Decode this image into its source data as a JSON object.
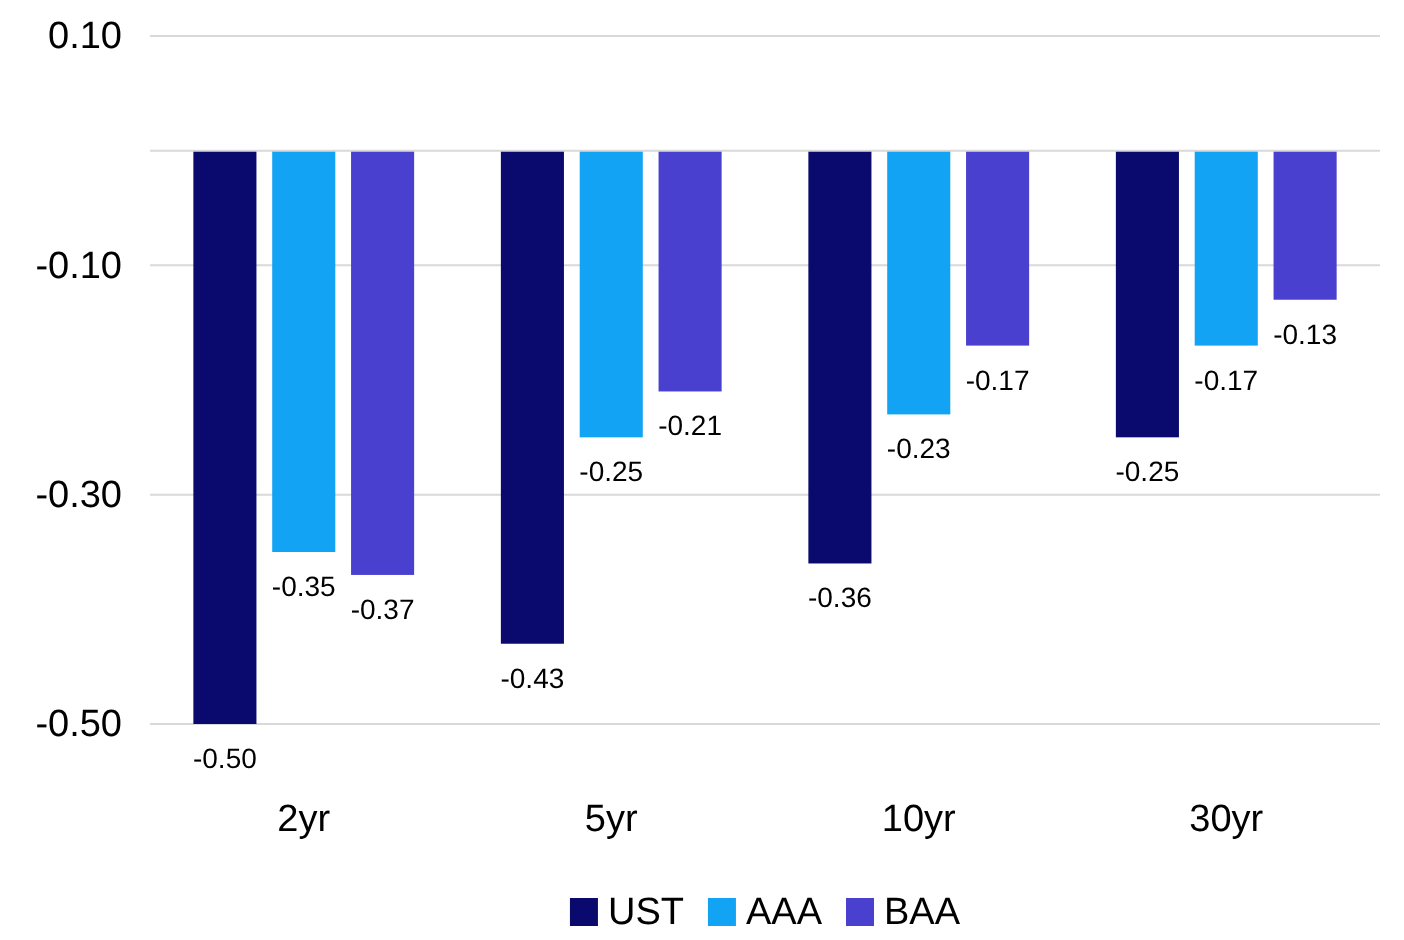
{
  "chart_data": {
    "type": "bar",
    "categories": [
      "2yr",
      "5yr",
      "10yr",
      "30yr"
    ],
    "series": [
      {
        "name": "UST",
        "color": "#0a0a6e",
        "values": [
          -0.5,
          -0.43,
          -0.36,
          -0.25
        ],
        "value_labels": [
          "-0.50",
          "-0.43",
          "-0.36",
          "-0.25"
        ]
      },
      {
        "name": "AAA",
        "color": "#12a3f5",
        "values": [
          -0.35,
          -0.25,
          -0.23,
          -0.17
        ],
        "value_labels": [
          "-0.35",
          "-0.25",
          "-0.23",
          "-0.17"
        ]
      },
      {
        "name": "BAA",
        "color": "#4a40cf",
        "values": [
          -0.37,
          -0.21,
          -0.17,
          -0.13
        ],
        "value_labels": [
          "-0.37",
          "-0.21",
          "-0.17",
          "-0.13"
        ]
      }
    ],
    "ylim": [
      -0.5,
      0.1
    ],
    "yticks": [
      {
        "value": 0.1,
        "label": "0.10"
      },
      {
        "value": -0.1,
        "label": "-0.10"
      },
      {
        "value": -0.3,
        "label": "-0.30"
      },
      {
        "value": -0.5,
        "label": "-0.50"
      }
    ],
    "grid": "y",
    "legend": "bottom"
  }
}
